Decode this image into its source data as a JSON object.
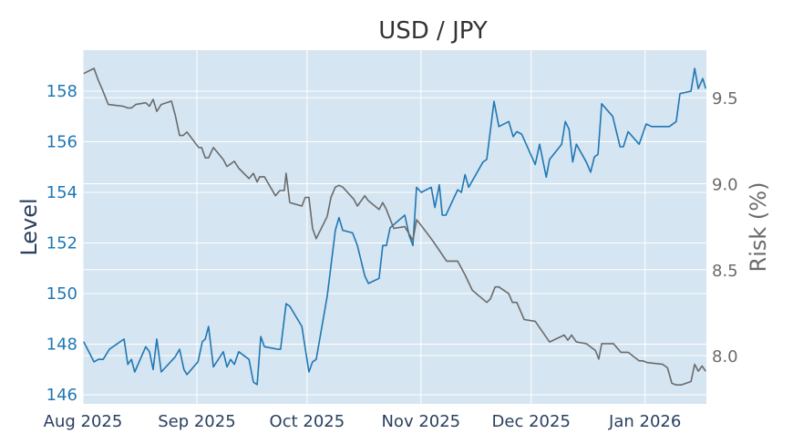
{
  "chart_data": {
    "type": "line",
    "title": "USD / JPY",
    "xlabel": "",
    "x_unit": "days since 2025-08-01",
    "xlim": [
      0,
      169.7
    ],
    "x_ticks": [
      {
        "day": 0,
        "label": "Aug 2025"
      },
      {
        "day": 31,
        "label": "Sep 2025"
      },
      {
        "day": 61,
        "label": "Oct 2025"
      },
      {
        "day": 92,
        "label": "Nov 2025"
      },
      {
        "day": 122,
        "label": "Dec 2025"
      },
      {
        "day": 153,
        "label": "Jan 2026"
      }
    ],
    "y_left": {
      "label": "Level",
      "range": [
        145.64,
        159.62
      ],
      "ticks": [
        146,
        148,
        150,
        152,
        154,
        156,
        158
      ],
      "tick_labels": [
        "146",
        "148",
        "150",
        "152",
        "154",
        "156",
        "158"
      ],
      "color": "#1f77b4"
    },
    "y_right": {
      "label": "Risk (%)",
      "range": [
        7.72,
        9.776
      ],
      "ticks": [
        8.0,
        8.5,
        9.0,
        9.5
      ],
      "tick_labels": [
        "8.0",
        "8.5",
        "9.0",
        "9.5"
      ],
      "color": "#6b6b6b"
    },
    "grid": true,
    "colors": {
      "plot_bg": "#d5e5f1",
      "grid": "#ffffff",
      "title": "#333333",
      "left_label": "#2a3f5f"
    },
    "series": [
      {
        "name": "Level",
        "axis": "left",
        "color": "#1f77b4",
        "x": [
          0.2,
          3.0,
          4.2,
          5.5,
          7.2,
          11.2,
          12.2,
          13.2,
          14.1,
          17.1,
          18.1,
          19.1,
          20.1,
          21.3,
          25.1,
          26.3,
          27.5,
          28.3,
          31.3,
          32.5,
          33.3,
          34.2,
          35.5,
          38.2,
          39.2,
          40.2,
          41.2,
          42.4,
          45.2,
          46.4,
          47.4,
          48.4,
          49.4,
          53.1,
          53.8,
          55.3,
          56.3,
          59.6,
          61.5,
          62.5,
          63.5,
          66.5,
          68.7,
          69.7,
          70.7,
          73.4,
          74.7,
          76.7,
          77.7,
          80.6,
          81.6,
          82.6,
          83.6,
          87.6,
          88.8,
          89.8,
          90.8,
          92.1,
          94.8,
          95.8,
          97.0,
          97.8,
          98.8,
          102.0,
          103.0,
          104.0,
          105.0,
          108.9,
          109.9,
          111.9,
          113.2,
          115.9,
          117.1,
          118.1,
          119.4,
          123.1,
          124.3,
          126.1,
          127.0,
          130.3,
          131.3,
          132.3,
          133.3,
          134.3,
          137.0,
          138.2,
          139.2,
          140.2,
          141.2,
          144.2,
          146.2,
          147.1,
          148.4,
          151.4,
          153.3,
          154.8,
          159.6,
          161.5,
          162.5,
          165.5,
          166.5,
          167.5,
          168.7,
          169.5
        ],
        "values": [
          148.1,
          147.3,
          147.4,
          147.4,
          147.8,
          148.2,
          147.2,
          147.4,
          146.9,
          147.9,
          147.7,
          147.0,
          148.2,
          146.9,
          147.5,
          147.8,
          147.0,
          146.8,
          147.3,
          148.1,
          148.2,
          148.7,
          147.1,
          147.7,
          147.1,
          147.4,
          147.2,
          147.7,
          147.4,
          146.5,
          146.4,
          148.3,
          147.9,
          147.8,
          147.8,
          149.6,
          149.5,
          148.7,
          146.9,
          147.3,
          147.4,
          149.9,
          152.5,
          153.0,
          152.5,
          152.4,
          151.9,
          150.7,
          150.4,
          150.6,
          151.9,
          151.9,
          152.6,
          153.1,
          152.3,
          151.9,
          154.2,
          154.0,
          154.2,
          153.4,
          154.3,
          153.1,
          153.1,
          154.1,
          154.0,
          154.7,
          154.2,
          155.2,
          155.3,
          157.6,
          156.6,
          156.8,
          156.2,
          156.4,
          156.3,
          155.1,
          155.9,
          154.6,
          155.3,
          155.9,
          156.8,
          156.5,
          155.2,
          155.9,
          155.2,
          154.8,
          155.4,
          155.5,
          157.5,
          157.0,
          155.8,
          155.8,
          156.4,
          155.9,
          156.7,
          156.6,
          156.6,
          156.8,
          157.9,
          158.0,
          158.9,
          158.1,
          158.5,
          158.1
        ]
      },
      {
        "name": "Risk (%)",
        "axis": "right",
        "color": "#6b6b6b",
        "x": [
          0.2,
          3.0,
          4.2,
          5.2,
          6.9,
          10.9,
          12.2,
          13.2,
          14.4,
          17.1,
          18.1,
          19.1,
          20.1,
          21.3,
          24.1,
          25.1,
          26.3,
          27.3,
          28.3,
          31.5,
          32.3,
          33.3,
          34.2,
          35.5,
          38.2,
          39.2,
          41.2,
          42.4,
          45.2,
          46.4,
          47.4,
          48.1,
          49.4,
          52.4,
          53.6,
          54.8,
          55.3,
          56.3,
          59.6,
          60.5,
          61.5,
          62.5,
          63.5,
          66.5,
          67.5,
          68.7,
          69.7,
          70.7,
          73.7,
          74.7,
          76.7,
          77.7,
          80.6,
          81.6,
          82.6,
          84.6,
          87.6,
          89.8,
          90.8,
          91.6,
          94.8,
          95.8,
          99.0,
          102.0,
          104.0,
          106.0,
          109.9,
          110.9,
          112.2,
          113.2,
          115.9,
          116.9,
          118.1,
          120.1,
          123.1,
          127.0,
          131.0,
          132.0,
          133.0,
          134.3,
          137.0,
          139.5,
          140.4,
          141.2,
          144.4,
          146.4,
          148.4,
          151.4,
          152.4,
          153.6,
          157.8,
          159.1,
          160.3,
          161.5,
          162.8,
          165.5,
          166.5,
          167.5,
          168.5,
          169.5
        ],
        "values": [
          9.64,
          9.67,
          9.6,
          9.55,
          9.46,
          9.45,
          9.44,
          9.44,
          9.46,
          9.47,
          9.45,
          9.49,
          9.42,
          9.46,
          9.48,
          9.4,
          9.28,
          9.28,
          9.3,
          9.21,
          9.21,
          9.15,
          9.15,
          9.21,
          9.14,
          9.1,
          9.13,
          9.09,
          9.03,
          9.06,
          9.01,
          9.04,
          9.04,
          8.93,
          8.96,
          8.96,
          9.06,
          8.89,
          8.87,
          8.92,
          8.92,
          8.74,
          8.68,
          8.81,
          8.92,
          8.98,
          8.99,
          8.98,
          8.91,
          8.87,
          8.93,
          8.9,
          8.85,
          8.89,
          8.85,
          8.74,
          8.75,
          8.67,
          8.79,
          8.77,
          8.68,
          8.65,
          8.55,
          8.55,
          8.47,
          8.38,
          8.31,
          8.33,
          8.4,
          8.4,
          8.36,
          8.31,
          8.31,
          8.21,
          8.2,
          8.08,
          8.12,
          8.09,
          8.12,
          8.08,
          8.07,
          8.03,
          7.98,
          8.07,
          8.07,
          8.02,
          8.02,
          7.97,
          7.97,
          7.96,
          7.95,
          7.93,
          7.84,
          7.83,
          7.83,
          7.85,
          7.95,
          7.91,
          7.94,
          7.91
        ]
      }
    ]
  }
}
